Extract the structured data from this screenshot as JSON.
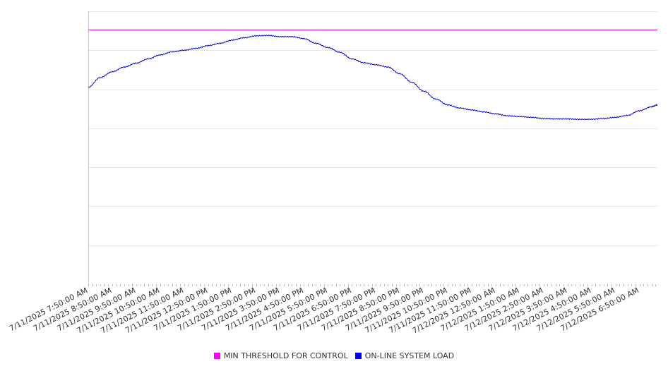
{
  "chart_data": {
    "type": "line",
    "title": "",
    "xlabel": "",
    "ylabel": "",
    "y_tick_labels_shown": false,
    "grid": "horizontal",
    "legend_position": "bottom",
    "x_tick_labels": [
      "7/11/2025 7:50:00 AM",
      "7/11/2025 8:50:00 AM",
      "7/11/2025 9:50:00 AM",
      "7/11/2025 10:50:00 AM",
      "7/11/2025 11:50:00 AM",
      "7/11/2025 12:50:00 PM",
      "7/11/2025 1:50:00 PM",
      "7/11/2025 2:50:00 PM",
      "7/11/2025 3:50:00 PM",
      "7/11/2025 4:50:00 PM",
      "7/11/2025 5:50:00 PM",
      "7/11/2025 6:50:00 PM",
      "7/11/2025 7:50:00 PM",
      "7/11/2025 8:50:00 PM",
      "7/11/2025 9:50:00 PM",
      "7/11/2025 10:50:00 PM",
      "7/11/2025 11:50:00 PM",
      "7/12/2025 12:50:00 AM",
      "7/12/2025 1:50:00 AM",
      "7/12/2025 2:50:00 AM",
      "7/12/2025 3:50:00 AM",
      "7/12/2025 4:50:00 AM",
      "7/12/2025 5:50:00 AM",
      "7/12/2025 6:50:00 AM"
    ],
    "x_end_hours": 23.75,
    "ylim": [
      0,
      7
    ],
    "y_gridlines": [
      0,
      1,
      2,
      3,
      4,
      5,
      6,
      7
    ],
    "series": [
      {
        "name": "MIN THRESHOLD FOR CONTROL",
        "color": "#cc00cc",
        "legend_color": "#ff00ff",
        "x": [
          0,
          23.75
        ],
        "y": [
          6.52,
          6.52
        ]
      },
      {
        "name": "ON-LINE SYSTEM LOAD",
        "color": "#0000cc",
        "legend_color": "#0000ff",
        "x": [
          0,
          0.5,
          1,
          1.5,
          2,
          2.5,
          3,
          3.5,
          4,
          4.5,
          5,
          5.5,
          6,
          6.5,
          7,
          7.5,
          8,
          8.5,
          9,
          9.5,
          10,
          10.5,
          11,
          11.5,
          12,
          12.5,
          13,
          13.5,
          14,
          14.5,
          15,
          15.5,
          16,
          16.5,
          17,
          17.5,
          18,
          18.5,
          19,
          19.5,
          20,
          20.5,
          21,
          21.5,
          22,
          22.5,
          23,
          23.5,
          23.75
        ],
        "y": [
          5.05,
          5.3,
          5.45,
          5.57,
          5.67,
          5.78,
          5.88,
          5.96,
          6.0,
          6.05,
          6.12,
          6.18,
          6.26,
          6.32,
          6.37,
          6.38,
          6.35,
          6.35,
          6.3,
          6.18,
          6.07,
          5.95,
          5.78,
          5.68,
          5.63,
          5.57,
          5.4,
          5.18,
          4.95,
          4.75,
          4.6,
          4.52,
          4.47,
          4.42,
          4.37,
          4.32,
          4.3,
          4.28,
          4.25,
          4.24,
          4.24,
          4.23,
          4.23,
          4.25,
          4.28,
          4.33,
          4.45,
          4.55,
          4.6
        ]
      }
    ]
  }
}
